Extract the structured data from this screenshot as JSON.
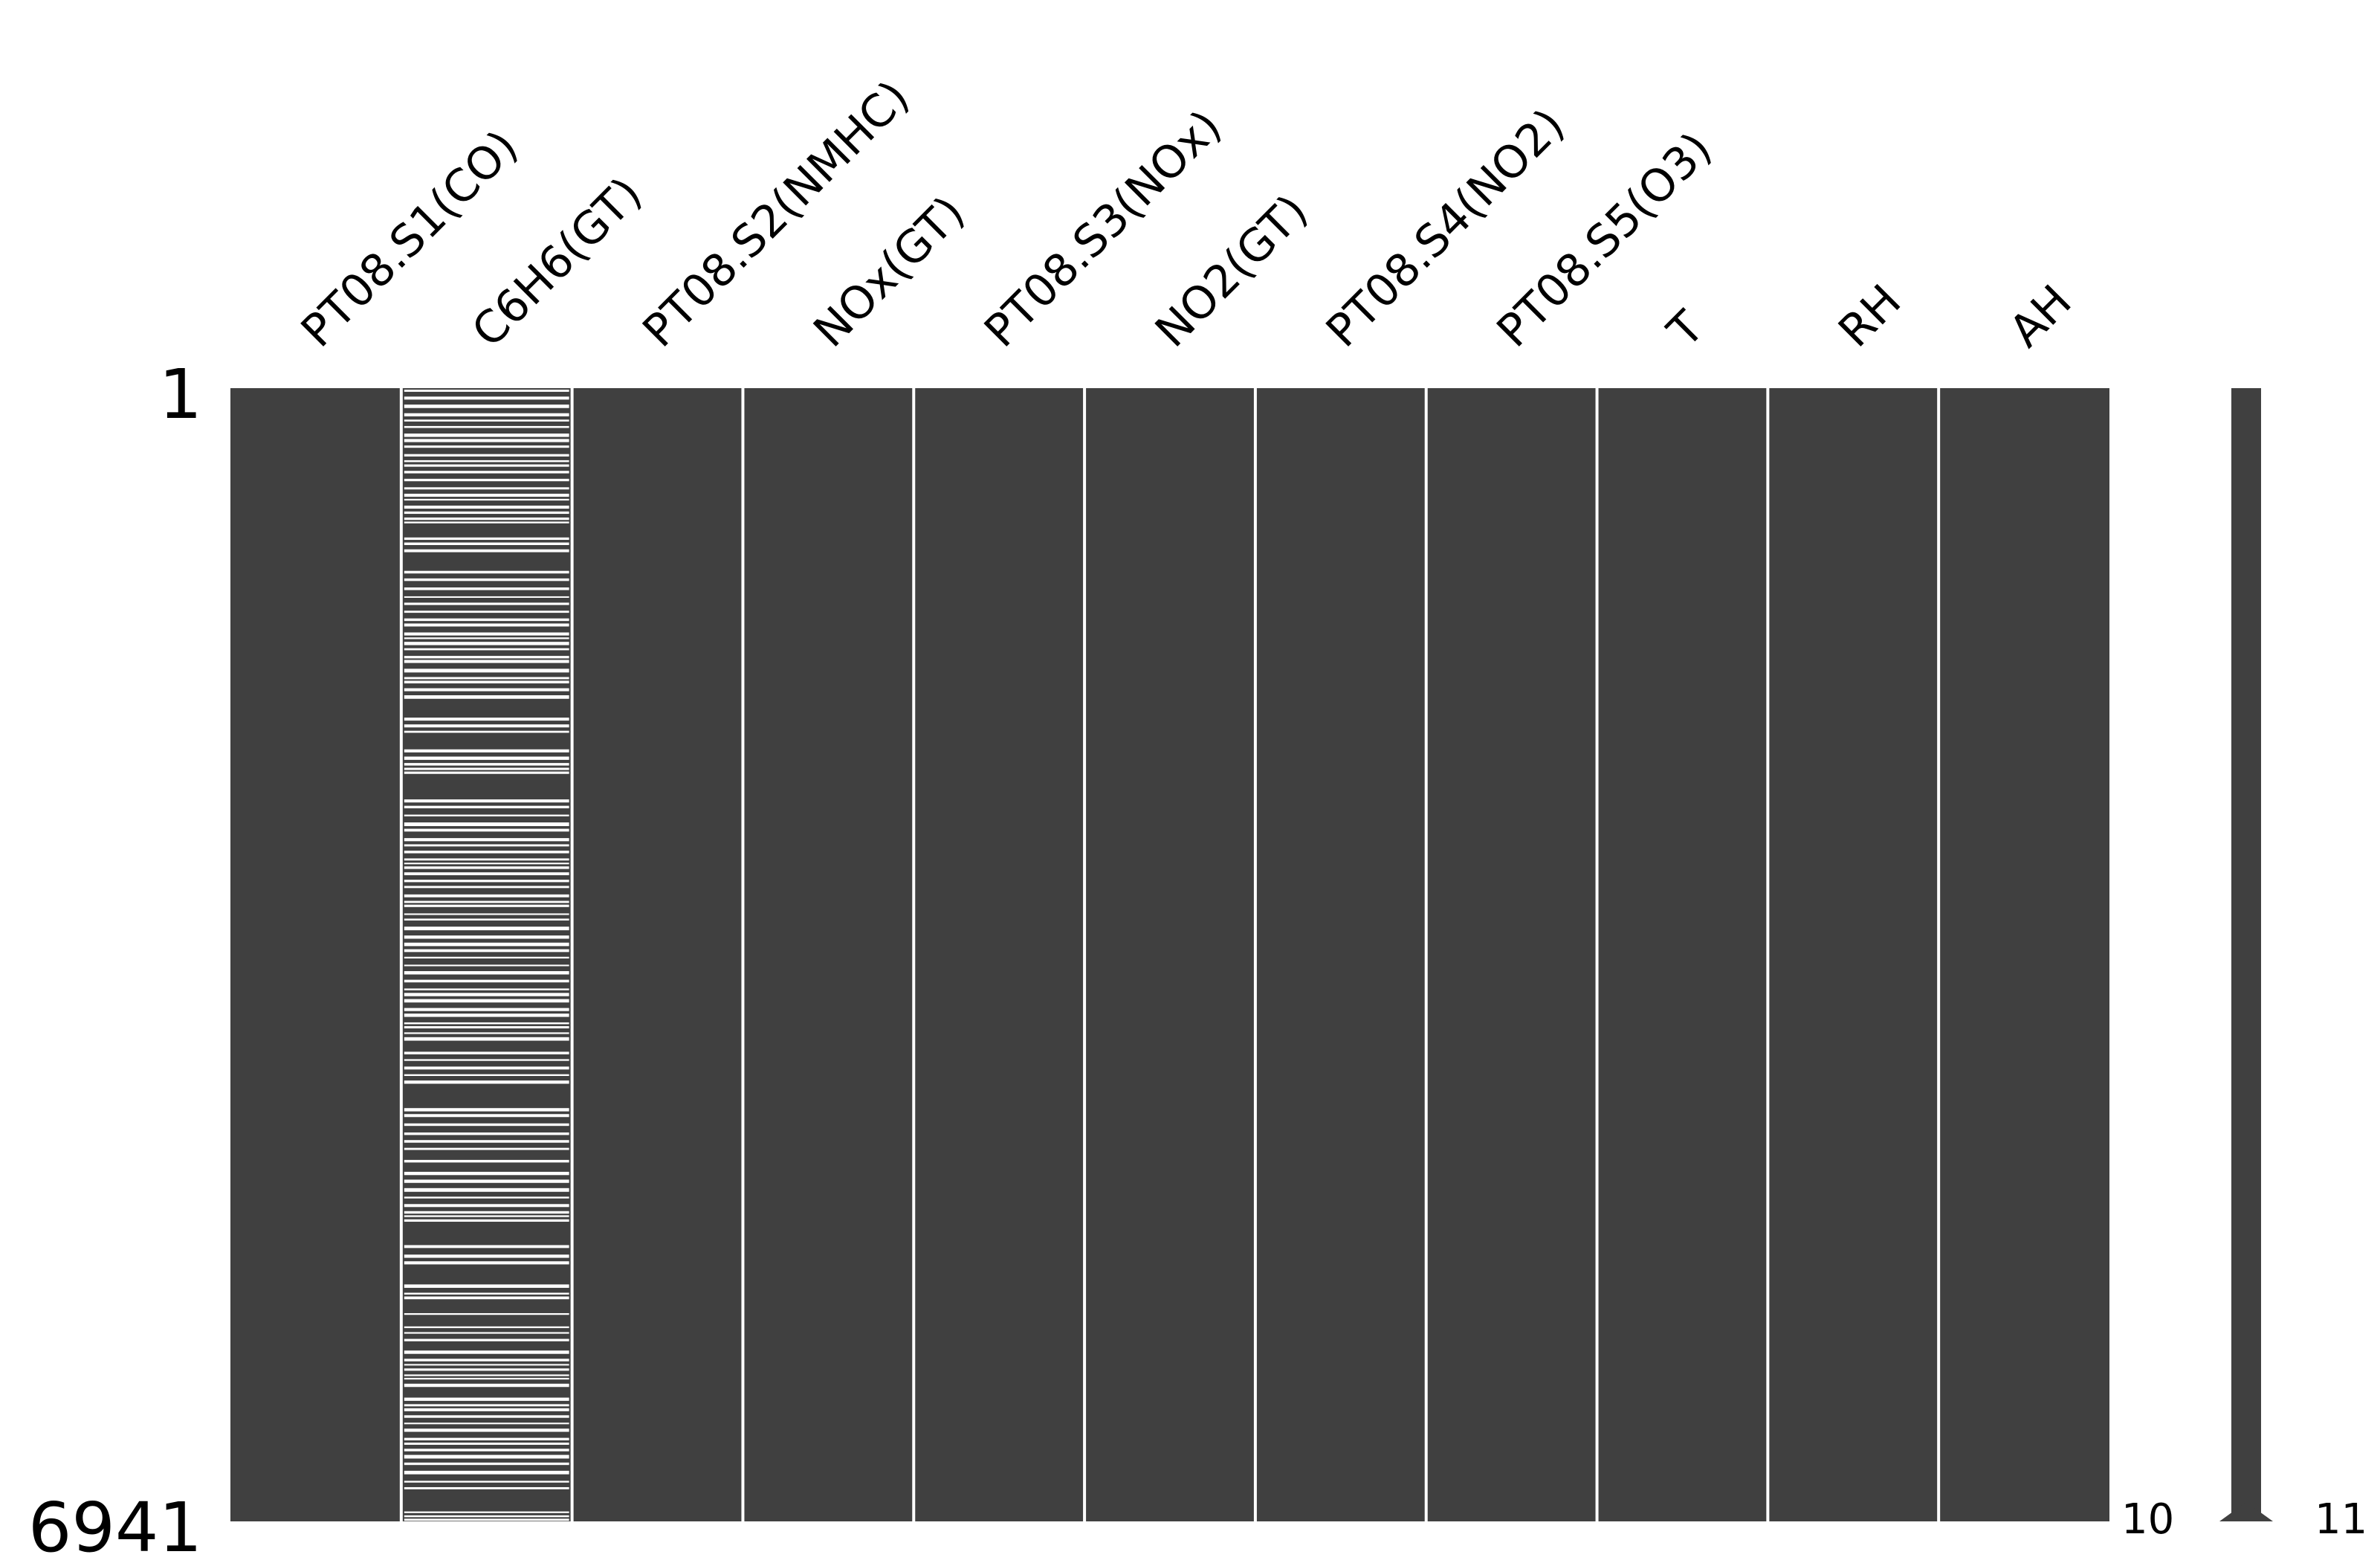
{
  "chart_data": {
    "type": "missingness-matrix",
    "columns": [
      "PT08.S1(CO)",
      "C6H6(GT)",
      "PT08.S2(NMHC)",
      "NOx(GT)",
      "PT08.S3(NOx)",
      "NO2(GT)",
      "PT08.S4(NO2)",
      "PT08.S5(O3)",
      "T",
      "RH",
      "AH"
    ],
    "row_labels": {
      "first": "1",
      "last": "6941"
    },
    "n_rows": 6941,
    "missing_column": "C6H6(GT)",
    "present_color": "#404040",
    "missing_color": "#ffffff",
    "sparkline": {
      "min_label": "10",
      "max_label": "11",
      "min_complete": 10,
      "max_complete": 11
    }
  }
}
